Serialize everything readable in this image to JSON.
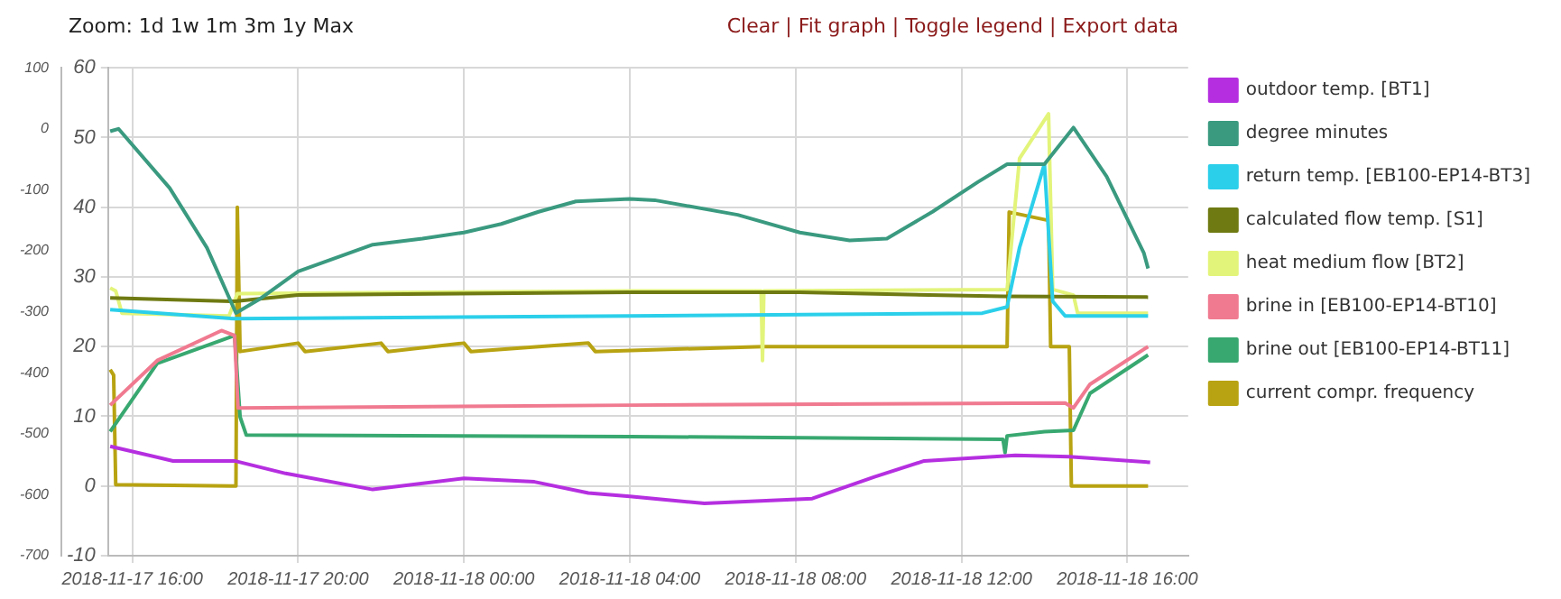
{
  "chart_data": {
    "type": "line",
    "annotations": [
      "Zoom: 1d 1w 1m 3m 1y Max",
      "Clear | Fit graph | Toggle legend | Export data"
    ],
    "xlim": [
      "2018-11-17T15:25",
      "2018-11-18T17:28"
    ],
    "xticks": [
      {
        "value": "2018-11-17T16:00",
        "label": "2018-11-17 16:00"
      },
      {
        "value": "2018-11-17T20:00",
        "label": "2018-11-17 20:00"
      },
      {
        "value": "2018-11-18T00:00",
        "label": "2018-11-18 00:00"
      },
      {
        "value": "2018-11-18T04:00",
        "label": "2018-11-18 04:00"
      },
      {
        "value": "2018-11-18T08:00",
        "label": "2018-11-18 08:00"
      },
      {
        "value": "2018-11-18T12:00",
        "label": "2018-11-18 12:00"
      },
      {
        "value": "2018-11-18T16:00",
        "label": "2018-11-18 16:00"
      }
    ],
    "ylim": [
      -10,
      60
    ],
    "yticks": [
      -10,
      0,
      10,
      20,
      30,
      40,
      50,
      60
    ],
    "y2lim": [
      -700,
      100
    ],
    "y2ticks": [
      -700,
      -600,
      -500,
      -400,
      -300,
      -200,
      -100,
      0,
      100
    ],
    "grid": true,
    "legend": "right",
    "marker": "none",
    "line_style": "solid",
    "series": [
      {
        "name": "outdoor temp. [BT1]",
        "color": "#b52fe0",
        "x": [
          "2018-11-17T15:28",
          "2018-11-17T16:59",
          "2018-11-17T18:28",
          "2018-11-17T19:42",
          "2018-11-17T21:48",
          "2018-11-18T00:00",
          "2018-11-18T01:42",
          "2018-11-18T03:00",
          "2018-11-18T04:00",
          "2018-11-18T05:48",
          "2018-11-18T08:24",
          "2018-11-18T09:54",
          "2018-11-18T11:06",
          "2018-11-18T13:18",
          "2018-11-18T14:36",
          "2018-11-18T16:33"
        ],
        "values": [
          5.7,
          3.6,
          3.6,
          1.8,
          -0.5,
          1.1,
          0.6,
          -1,
          -1.5,
          -2.5,
          -1.8,
          1.3,
          3.6,
          4.4,
          4.2,
          3.4
        ]
      },
      {
        "name": "degree minutes",
        "color": "#3a9a80",
        "axis": "y2",
        "x": [
          "2018-11-17T15:28",
          "2018-11-17T15:40",
          "2018-11-17T16:54",
          "2018-11-17T17:48",
          "2018-11-17T18:30",
          "2018-11-17T19:06",
          "2018-11-17T20:00",
          "2018-11-17T21:48",
          "2018-11-17T23:00",
          "2018-11-18T00:00",
          "2018-11-18T00:54",
          "2018-11-18T01:48",
          "2018-11-18T02:42",
          "2018-11-18T04:00",
          "2018-11-18T04:36",
          "2018-11-18T06:36",
          "2018-11-18T08:06",
          "2018-11-18T09:18",
          "2018-11-18T10:12",
          "2018-11-18T11:18",
          "2018-11-18T12:24",
          "2018-11-18T13:06",
          "2018-11-18T14:00",
          "2018-11-18T14:42",
          "2018-11-18T15:30",
          "2018-11-18T16:24",
          "2018-11-18T16:30"
        ],
        "values": [
          -4,
          0,
          -97,
          -195,
          -302,
          -278,
          -234,
          -190,
          -180,
          -170,
          -156,
          -136,
          -119,
          -115,
          -117,
          -141,
          -170,
          -183,
          -180,
          -136,
          -87,
          -58,
          -58,
          2,
          -78,
          -204,
          -229
        ]
      },
      {
        "name": "return temp. [EB100-EP14-BT3]",
        "color": "#2bcfea",
        "x": [
          "2018-11-17T15:28",
          "2018-11-17T18:28",
          "2018-11-18T04:00",
          "2018-11-18T12:30",
          "2018-11-18T13:06",
          "2018-11-18T13:24",
          "2018-11-18T14:00",
          "2018-11-18T14:12",
          "2018-11-18T14:30",
          "2018-11-18T16:30"
        ],
        "values": [
          25.3,
          24,
          24.4,
          24.8,
          25.7,
          34.2,
          46.2,
          26.5,
          24.4,
          24.4
        ]
      },
      {
        "name": "calculated flow temp. [S1]",
        "color": "#6f7a12",
        "x": [
          "2018-11-17T15:28",
          "2018-11-17T18:28",
          "2018-11-17T20:00",
          "2018-11-18T04:00",
          "2018-11-18T08:06",
          "2018-11-18T13:00",
          "2018-11-18T16:30"
        ],
        "values": [
          27,
          26.5,
          27.4,
          27.8,
          27.8,
          27.2,
          27.1
        ]
      },
      {
        "name": "heat medium flow [BT2]",
        "color": "#e3f47a",
        "x": [
          "2018-11-17T15:28",
          "2018-11-17T15:36",
          "2018-11-17T15:45",
          "2018-11-17T18:20",
          "2018-11-17T18:32",
          "2018-11-18T04:00",
          "2018-11-18T07:10",
          "2018-11-18T07:12",
          "2018-11-18T07:14",
          "2018-11-18T13:06",
          "2018-11-18T13:24",
          "2018-11-18T14:06",
          "2018-11-18T14:12",
          "2018-11-18T14:42",
          "2018-11-18T14:48",
          "2018-11-18T16:30"
        ],
        "values": [
          28.4,
          28,
          24.8,
          24.4,
          27.6,
          28,
          28,
          18,
          28,
          28.2,
          47,
          53.4,
          28.2,
          27.4,
          24.8,
          24.8
        ]
      },
      {
        "name": "brine in [EB100-EP14-BT10]",
        "color": "#f07a90",
        "x": [
          "2018-11-17T15:28",
          "2018-11-17T16:36",
          "2018-11-17T18:09",
          "2018-11-17T18:28",
          "2018-11-17T18:33",
          "2018-11-18T04:00",
          "2018-11-18T14:30",
          "2018-11-18T14:42",
          "2018-11-18T15:06",
          "2018-11-18T16:30"
        ],
        "values": [
          11.6,
          18,
          22.3,
          21.6,
          11.2,
          11.6,
          11.9,
          11.2,
          14.6,
          20
        ]
      },
      {
        "name": "brine out [EB100-EP14-BT11]",
        "color": "#38a870",
        "x": [
          "2018-11-17T15:28",
          "2018-11-17T16:36",
          "2018-11-17T18:28",
          "2018-11-17T18:36",
          "2018-11-17T18:45",
          "2018-11-18T04:00",
          "2018-11-18T13:00",
          "2018-11-18T13:03",
          "2018-11-18T13:06",
          "2018-11-18T14:00",
          "2018-11-18T14:42",
          "2018-11-18T15:06",
          "2018-11-18T16:30"
        ],
        "values": [
          7.8,
          17.6,
          21.6,
          9.9,
          7.3,
          7.1,
          6.7,
          4.8,
          7.2,
          7.8,
          8,
          13.3,
          18.8
        ]
      },
      {
        "name": "current compr. frequency",
        "color": "#b8a312",
        "x": [
          "2018-11-17T15:28",
          "2018-11-17T15:33",
          "2018-11-17T15:36",
          "2018-11-17T18:30",
          "2018-11-17T18:32",
          "2018-11-17T18:36",
          "2018-11-17T20:00",
          "2018-11-17T20:10",
          "2018-11-17T22:00",
          "2018-11-17T22:10",
          "2018-11-18T00:00",
          "2018-11-18T00:10",
          "2018-11-18T03:00",
          "2018-11-18T03:10",
          "2018-11-18T07:12",
          "2018-11-18T13:06",
          "2018-11-18T13:09",
          "2018-11-18T14:06",
          "2018-11-18T14:09",
          "2018-11-18T14:36",
          "2018-11-18T14:39",
          "2018-11-18T16:30"
        ],
        "values": [
          16.7,
          15.9,
          0.2,
          0,
          40,
          19.3,
          20.5,
          19.3,
          20.5,
          19.3,
          20.5,
          19.3,
          20.5,
          19.3,
          20,
          20,
          39.3,
          38.1,
          20,
          20,
          0,
          0
        ]
      }
    ]
  }
}
